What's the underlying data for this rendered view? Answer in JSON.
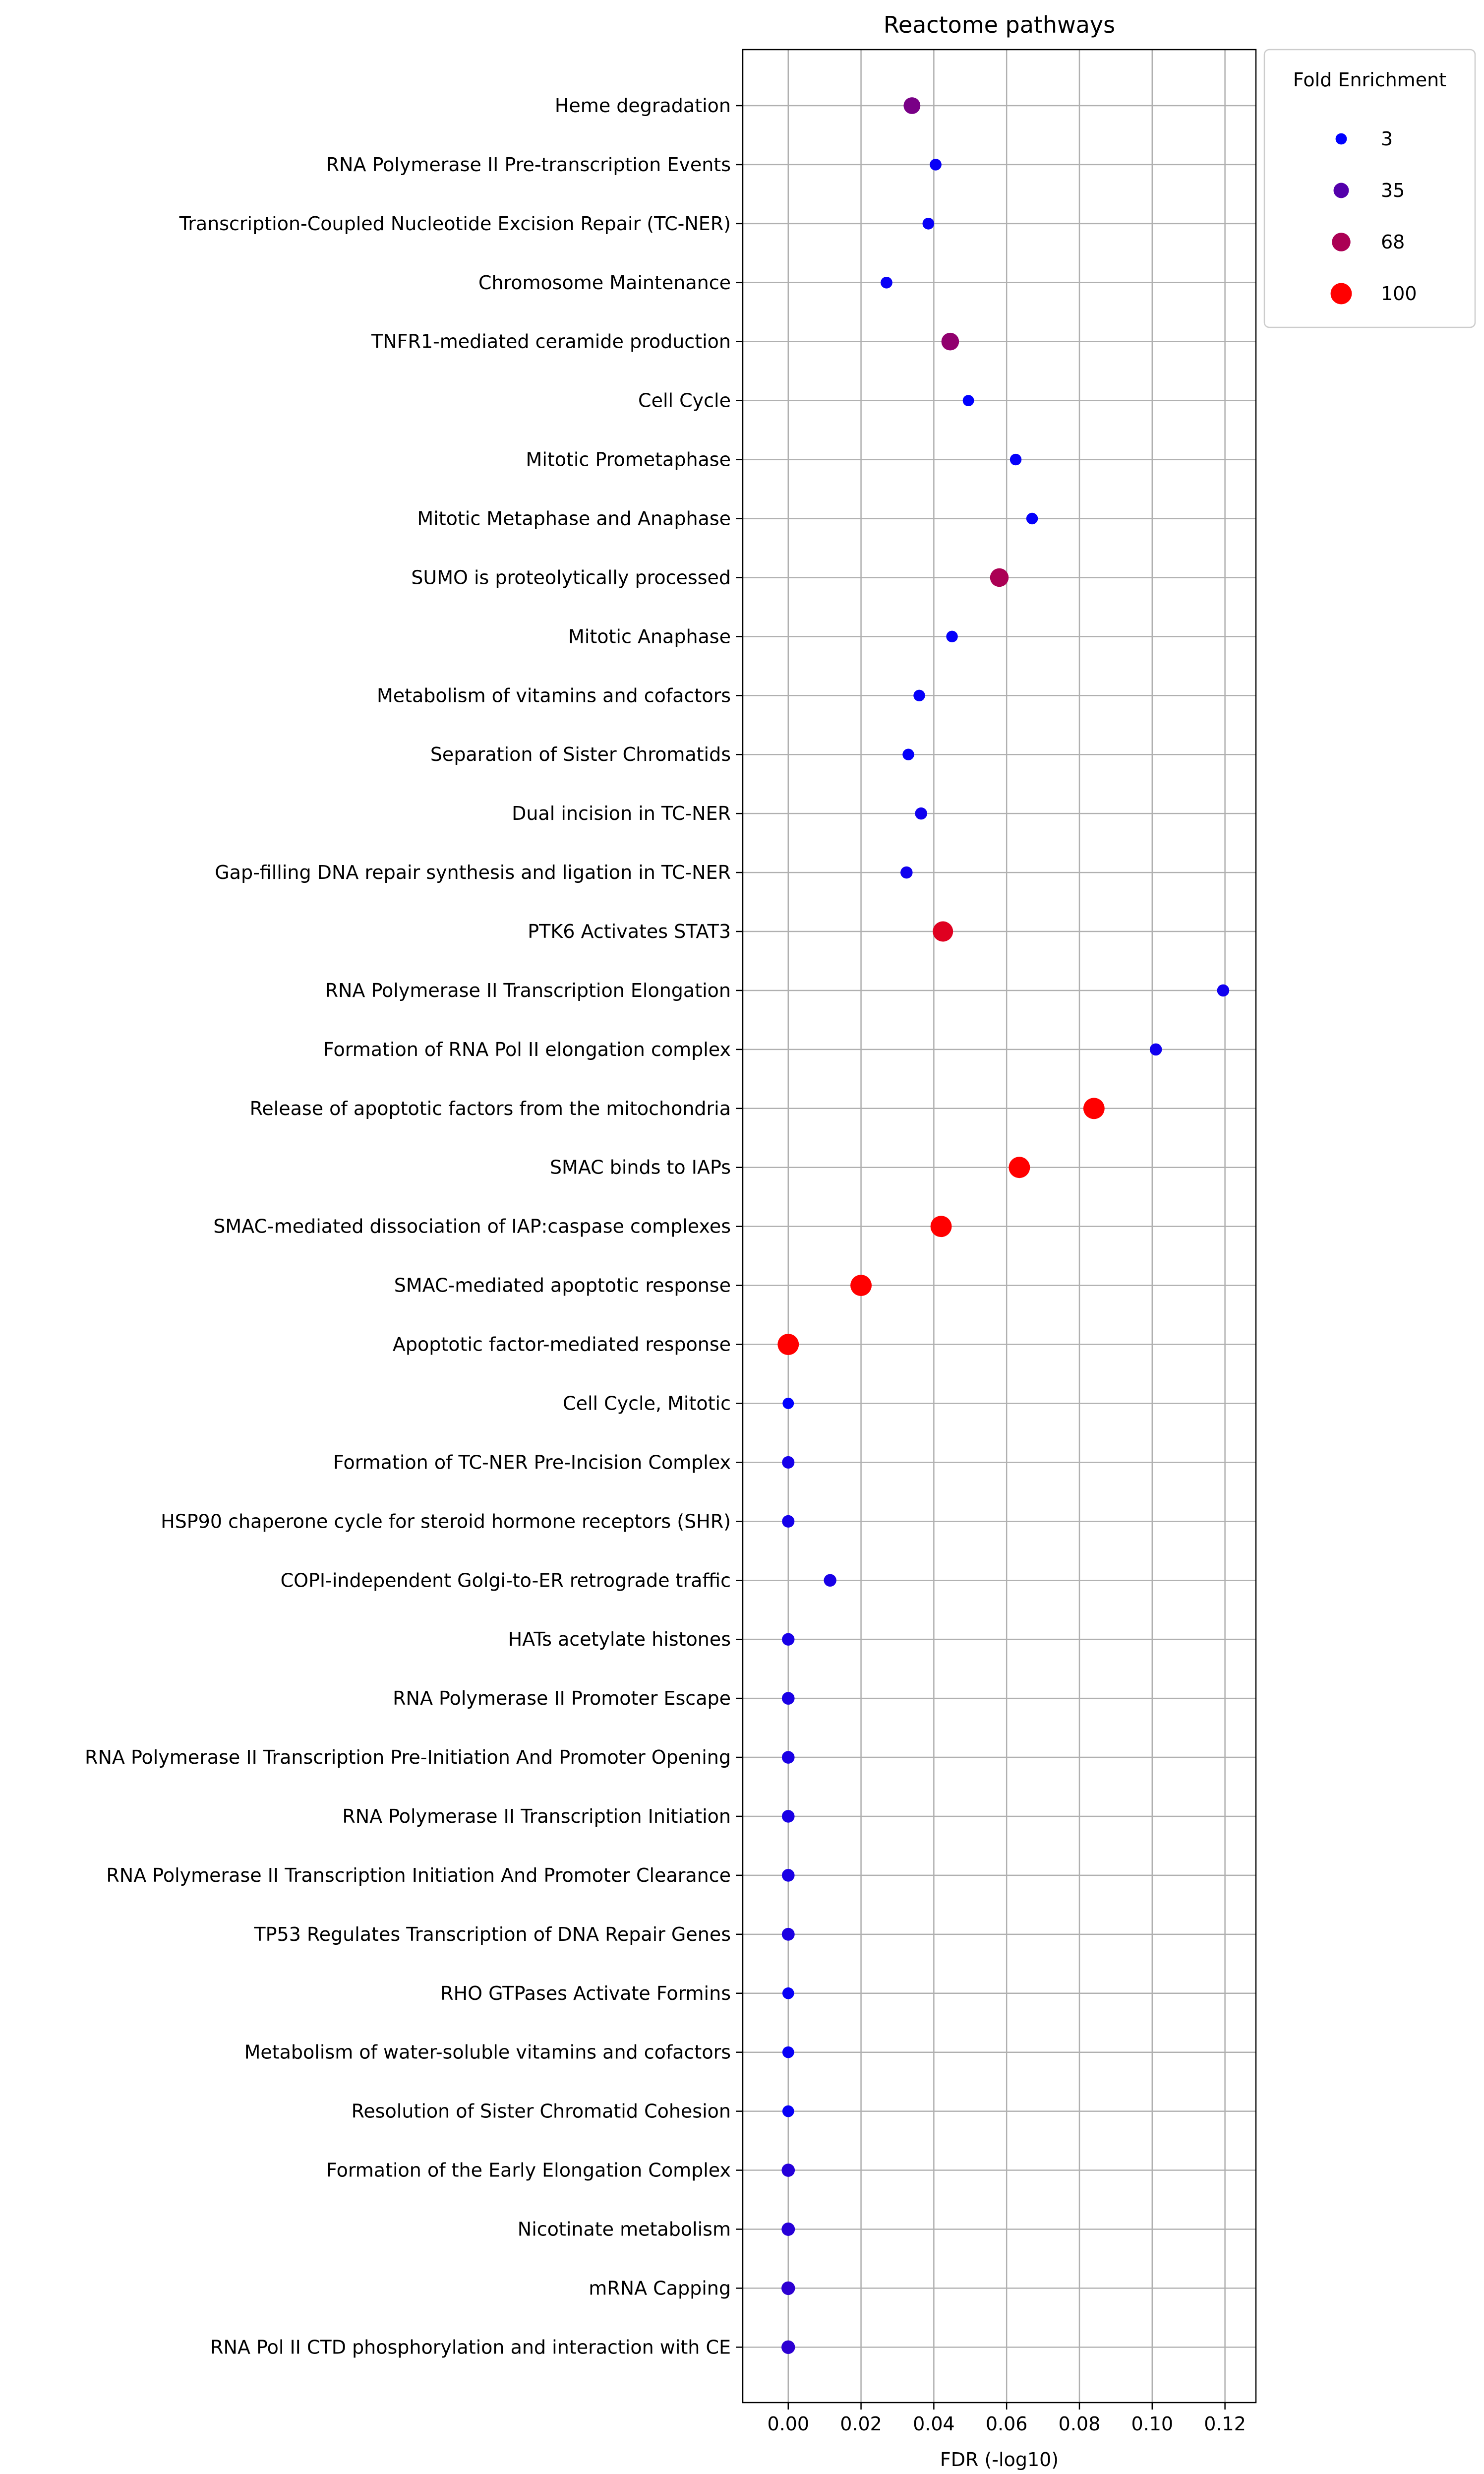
{
  "chart_data": {
    "type": "scatter",
    "title": "Reactome pathways",
    "xlabel": "FDR (-log10)",
    "ylabel": "",
    "xlim": [
      -0.0125,
      0.1285
    ],
    "xticks": [
      0.0,
      0.02,
      0.04,
      0.06,
      0.08,
      0.1,
      0.12
    ],
    "xtick_labels": [
      "0.00",
      "0.02",
      "0.04",
      "0.06",
      "0.08",
      "0.10",
      "0.12"
    ],
    "grid": true,
    "legend": {
      "title": "Fold Enrichment",
      "placement": "upper-right-outside",
      "entries": [
        {
          "label": "3",
          "value": 3
        },
        {
          "label": "35",
          "value": 35
        },
        {
          "label": "68",
          "value": 68
        },
        {
          "label": "100",
          "value": 100
        }
      ]
    },
    "color_scale": {
      "low": "#0000ff",
      "high": "#ff0000",
      "min": 3,
      "max": 100
    },
    "points": [
      {
        "pathway": "Heme degradation",
        "fdr": 0.034,
        "fold_enrichment": 49
      },
      {
        "pathway": "RNA Polymerase II Pre-transcription Events",
        "fdr": 0.0405,
        "fold_enrichment": 6
      },
      {
        "pathway": "Transcription-Coupled Nucleotide Excision Repair (TC-NER)",
        "fdr": 0.0385,
        "fold_enrichment": 6
      },
      {
        "pathway": "Chromosome Maintenance",
        "fdr": 0.027,
        "fold_enrichment": 6
      },
      {
        "pathway": "TNFR1-mediated ceramide production",
        "fdr": 0.0445,
        "fold_enrichment": 58
      },
      {
        "pathway": "Cell Cycle",
        "fdr": 0.0495,
        "fold_enrichment": 3
      },
      {
        "pathway": "Mitotic Prometaphase",
        "fdr": 0.0625,
        "fold_enrichment": 5
      },
      {
        "pathway": "Mitotic Metaphase and Anaphase",
        "fdr": 0.067,
        "fold_enrichment": 5
      },
      {
        "pathway": "SUMO is proteolytically processed",
        "fdr": 0.058,
        "fold_enrichment": 68
      },
      {
        "pathway": "Mitotic Anaphase",
        "fdr": 0.045,
        "fold_enrichment": 5
      },
      {
        "pathway": "Metabolism of vitamins and cofactors",
        "fdr": 0.036,
        "fold_enrichment": 5
      },
      {
        "pathway": "Separation of Sister Chromatids",
        "fdr": 0.033,
        "fold_enrichment": 5
      },
      {
        "pathway": "Dual incision in TC-NER",
        "fdr": 0.0365,
        "fold_enrichment": 9
      },
      {
        "pathway": "Gap-filling DNA repair synthesis and ligation in TC-NER",
        "fdr": 0.0325,
        "fold_enrichment": 9
      },
      {
        "pathway": "PTK6 Activates STAT3",
        "fdr": 0.0425,
        "fold_enrichment": 88
      },
      {
        "pathway": "RNA Polymerase II Transcription Elongation",
        "fdr": 0.1195,
        "fold_enrichment": 9
      },
      {
        "pathway": "Formation of RNA Pol II elongation complex",
        "fdr": 0.101,
        "fold_enrichment": 9
      },
      {
        "pathway": "Release of apoptotic factors from the mitochondria",
        "fdr": 0.084,
        "fold_enrichment": 100
      },
      {
        "pathway": "SMAC binds to IAPs",
        "fdr": 0.0635,
        "fold_enrichment": 100
      },
      {
        "pathway": "SMAC-mediated dissociation of IAP:caspase complexes",
        "fdr": 0.042,
        "fold_enrichment": 100
      },
      {
        "pathway": "SMAC-mediated apoptotic response",
        "fdr": 0.02,
        "fold_enrichment": 100
      },
      {
        "pathway": "Apoptotic factor-mediated response",
        "fdr": 0.0,
        "fold_enrichment": 100
      },
      {
        "pathway": "Cell Cycle, Mitotic",
        "fdr": 0.0,
        "fold_enrichment": 3
      },
      {
        "pathway": "Formation of TC-NER Pre-Incision Complex",
        "fdr": 0.0,
        "fold_enrichment": 11
      },
      {
        "pathway": "HSP90 chaperone cycle for steroid hormone receptors (SHR)",
        "fdr": 0.0,
        "fold_enrichment": 11
      },
      {
        "pathway": "COPI-independent Golgi-to-ER retrograde traffic",
        "fdr": 0.0115,
        "fold_enrichment": 12
      },
      {
        "pathway": "HATs acetylate histones",
        "fdr": 0.0,
        "fold_enrichment": 12
      },
      {
        "pathway": "RNA Polymerase II Promoter Escape",
        "fdr": 0.0,
        "fold_enrichment": 13
      },
      {
        "pathway": "RNA Polymerase II Transcription Pre-Initiation And Promoter Opening",
        "fdr": 0.0,
        "fold_enrichment": 13
      },
      {
        "pathway": "RNA Polymerase II Transcription Initiation",
        "fdr": 0.0,
        "fold_enrichment": 13
      },
      {
        "pathway": "RNA Polymerase II Transcription Initiation And Promoter Clearance",
        "fdr": 0.0,
        "fold_enrichment": 13
      },
      {
        "pathway": "TP53 Regulates Transcription of DNA Repair Genes",
        "fdr": 0.0,
        "fold_enrichment": 14
      },
      {
        "pathway": "RHO GTPases Activate Formins",
        "fdr": 0.0,
        "fold_enrichment": 6
      },
      {
        "pathway": "Metabolism of water-soluble vitamins and cofactors",
        "fdr": 0.0,
        "fold_enrichment": 6
      },
      {
        "pathway": "Resolution of Sister Chromatid Cohesion",
        "fdr": 0.0,
        "fold_enrichment": 6
      },
      {
        "pathway": "Formation of the Early Elongation Complex",
        "fdr": 0.0,
        "fold_enrichment": 17
      },
      {
        "pathway": "Nicotinate metabolism",
        "fdr": 0.0,
        "fold_enrichment": 18
      },
      {
        "pathway": "mRNA Capping",
        "fdr": 0.0,
        "fold_enrichment": 20
      },
      {
        "pathway": "RNA Pol II CTD phosphorylation and interaction with CE",
        "fdr": 0.0,
        "fold_enrichment": 20
      }
    ]
  }
}
